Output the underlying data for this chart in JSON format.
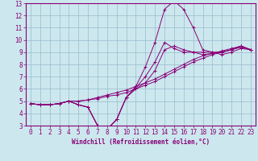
{
  "xlabel": "Windchill (Refroidissement éolien,°C)",
  "bg_color": "#cce8ee",
  "line_color": "#880077",
  "grid_color": "#99bbcc",
  "xlim": [
    -0.5,
    23.5
  ],
  "ylim": [
    3,
    13
  ],
  "xticks": [
    0,
    1,
    2,
    3,
    4,
    5,
    6,
    7,
    8,
    9,
    10,
    11,
    12,
    13,
    14,
    15,
    16,
    17,
    18,
    19,
    20,
    21,
    22,
    23
  ],
  "yticks": [
    3,
    4,
    5,
    6,
    7,
    8,
    9,
    10,
    11,
    12,
    13
  ],
  "lines": [
    [
      4.8,
      4.7,
      4.7,
      4.8,
      5.0,
      4.7,
      4.5,
      3.0,
      2.7,
      3.5,
      5.3,
      6.0,
      6.5,
      7.5,
      9.2,
      9.5,
      9.2,
      9.0,
      9.0,
      9.0,
      9.0,
      9.2,
      9.5,
      9.2
    ],
    [
      4.8,
      4.7,
      4.7,
      4.8,
      5.0,
      4.7,
      4.5,
      3.0,
      2.7,
      3.5,
      5.3,
      6.1,
      7.0,
      8.2,
      9.8,
      9.3,
      9.0,
      9.0,
      8.8,
      8.9,
      9.0,
      9.2,
      9.5,
      9.2
    ],
    [
      4.8,
      4.7,
      4.7,
      4.8,
      5.0,
      4.7,
      4.5,
      3.0,
      2.7,
      3.5,
      5.3,
      6.2,
      7.8,
      9.8,
      12.5,
      13.2,
      12.5,
      11.0,
      9.2,
      9.0,
      8.8,
      9.0,
      9.3,
      9.2
    ],
    [
      4.8,
      4.7,
      4.7,
      4.8,
      5.0,
      5.0,
      5.1,
      5.2,
      5.4,
      5.5,
      5.7,
      6.0,
      6.3,
      6.6,
      7.0,
      7.4,
      7.8,
      8.2,
      8.5,
      8.8,
      9.0,
      9.2,
      9.4,
      9.2
    ],
    [
      4.8,
      4.7,
      4.7,
      4.8,
      5.0,
      5.0,
      5.1,
      5.3,
      5.5,
      5.7,
      5.9,
      6.2,
      6.5,
      6.8,
      7.2,
      7.6,
      8.0,
      8.4,
      8.7,
      8.9,
      9.1,
      9.3,
      9.5,
      9.2
    ]
  ],
  "tick_fontsize": 5.5,
  "xlabel_fontsize": 5.5
}
